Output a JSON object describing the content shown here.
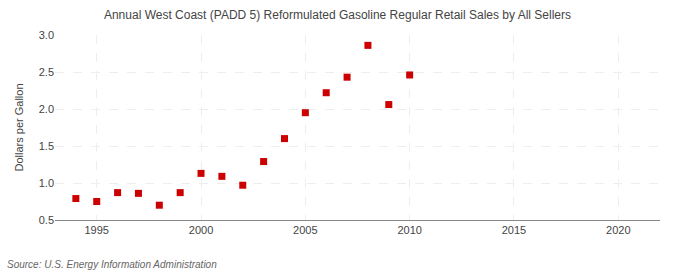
{
  "chart_data": {
    "type": "scatter",
    "title": "Annual West Coast (PADD 5) Reformulated Gasoline Regular Retail Sales by All Sellers",
    "ylabel": "Dollars per Gallon",
    "annotations": [
      "Source: U.S. Energy Information Administration"
    ],
    "x": [
      1994,
      1995,
      1996,
      1997,
      1998,
      1999,
      2000,
      2001,
      2002,
      2003,
      2004,
      2005,
      2006,
      2007,
      2008,
      2009,
      2010
    ],
    "values": [
      0.79,
      0.75,
      0.87,
      0.86,
      0.7,
      0.87,
      1.13,
      1.09,
      0.97,
      1.29,
      1.6,
      1.95,
      2.22,
      2.43,
      2.86,
      2.06,
      2.46
    ],
    "color": "#cc0000",
    "marker": "square",
    "xlim": [
      1993,
      2022
    ],
    "ylim": [
      0.5,
      3.0
    ],
    "xticks": [
      1995,
      2000,
      2005,
      2010,
      2015,
      2020
    ],
    "yticks": [
      0.5,
      {
        "value": 1,
        "label": "1.0"
      },
      1.5,
      {
        "value": 2,
        "label": "2.0"
      },
      2.5,
      {
        "value": 3,
        "label": "3.0"
      }
    ],
    "grid": true
  }
}
